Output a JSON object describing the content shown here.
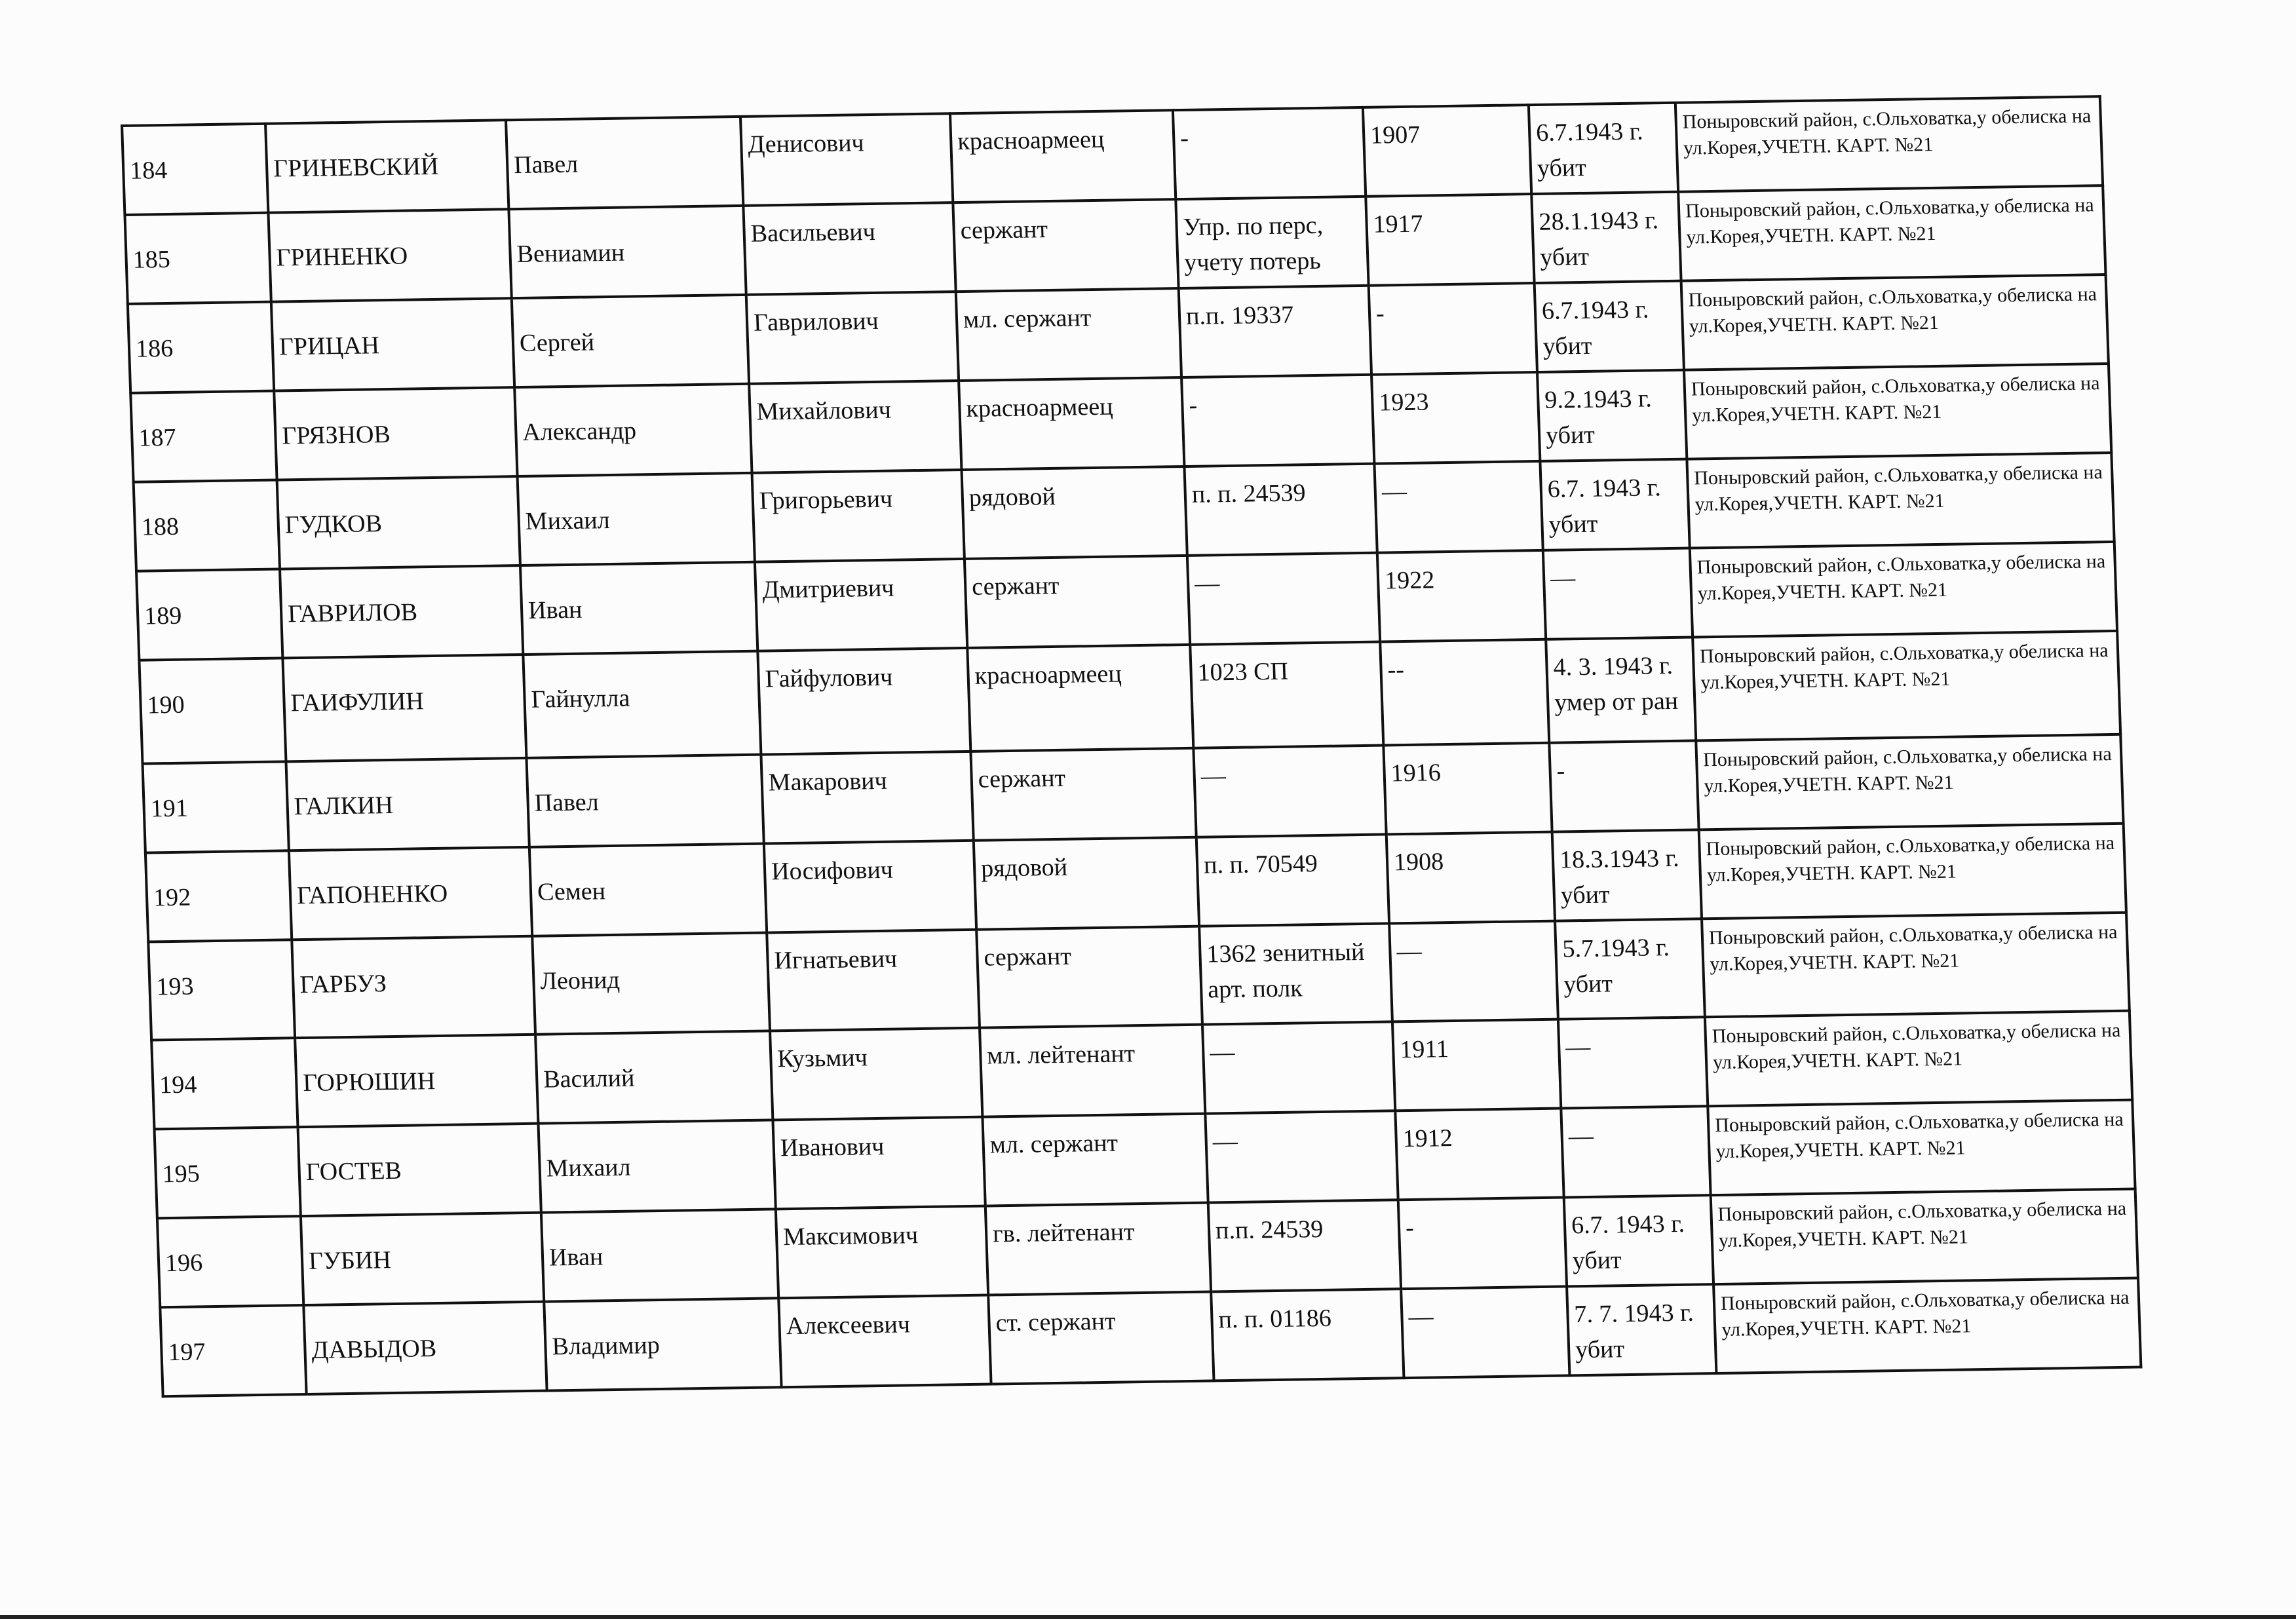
{
  "rows": [
    {
      "num": "184",
      "last": "ГРИНЕВСКИЙ",
      "first": "Павел",
      "patronymic": "Денисович",
      "rank": "красноармеец",
      "unit": "-",
      "birth": "1907",
      "death": "6.7.1943 г. убит",
      "burial": "Поныровский район, с.Ольховатка,у обелиска на ул.Корея,УЧЕТН. КАРТ. №21"
    },
    {
      "num": "185",
      "last": "ГРИНЕНКО",
      "first": "Вениамин",
      "patronymic": "Васильевич",
      "rank": "сержант",
      "unit": "Упр. по перс, учету потерь",
      "birth": "1917",
      "death": "28.1.1943 г. убит",
      "burial": "Поныровский район, с.Ольховатка,у обелиска на ул.Корея,УЧЕТН. КАРТ. №21"
    },
    {
      "num": "186",
      "last": "ГРИЦАН",
      "first": "Сергей",
      "patronymic": "Гаврилович",
      "rank": "мл. сержант",
      "unit": "п.п. 19337",
      "birth": "-",
      "death": "6.7.1943 г. убит",
      "burial": "Поныровский район, с.Ольховатка,у обелиска на ул.Корея,УЧЕТН. КАРТ. №21"
    },
    {
      "num": "187",
      "last": "ГРЯЗНОВ",
      "first": "Александр",
      "patronymic": "Михайлович",
      "rank": "красноармеец",
      "unit": "-",
      "birth": "1923",
      "death": "9.2.1943 г. убит",
      "burial": "Поныровский район, с.Ольховатка,у обелиска на ул.Корея,УЧЕТН. КАРТ. №21"
    },
    {
      "num": "188",
      "last": "ГУДКОВ",
      "first": "Михаил",
      "patronymic": "Григорьевич",
      "rank": "рядовой",
      "unit": "п. п. 24539",
      "birth": "—",
      "death": "6.7. 1943 г. убит",
      "burial": "Поныровский район, с.Ольховатка,у обелиска на ул.Корея,УЧЕТН. КАРТ. №21"
    },
    {
      "num": "189",
      "last": "ГАВРИЛОВ",
      "first": "Иван",
      "patronymic": "Дмитриевич",
      "rank": "сержант",
      "unit": "—",
      "birth": "1922",
      "death": "—",
      "burial": "Поныровский район, с.Ольховатка,у обелиска на ул.Корея,УЧЕТН. КАРТ. №21"
    },
    {
      "num": "190",
      "last": "ГАИФУЛИН",
      "first": "Гайнулла",
      "patronymic": "Гайфулович",
      "rank": "красноармеец",
      "unit": "1023 СП",
      "birth": "--",
      "death": "4. 3. 1943 г. умер от ран",
      "burial": "Поныровский район, с.Ольховатка,у обелиска на ул.Корея,УЧЕТН. КАРТ. №21"
    },
    {
      "num": "191",
      "last": "ГАЛКИН",
      "first": "Павел",
      "patronymic": "Макарович",
      "rank": "сержант",
      "unit": "—",
      "birth": "1916",
      "death": "-",
      "burial": "Поныровский район, с.Ольховатка,у обелиска на ул.Корея,УЧЕТН. КАРТ. №21"
    },
    {
      "num": "192",
      "last": "ГАПОНЕНКО",
      "first": "Семен",
      "patronymic": "Иосифович",
      "rank": "рядовой",
      "unit": "п. п. 70549",
      "birth": "1908",
      "death": "18.3.1943 г. убит",
      "burial": "Поныровский район, с.Ольховатка,у обелиска на ул.Корея,УЧЕТН. КАРТ. №21"
    },
    {
      "num": "193",
      "last": "ГАРБУЗ",
      "first": "Леонид",
      "patronymic": "Игнатьевич",
      "rank": "сержант",
      "unit": "1362 зенитный арт. полк",
      "birth": "—",
      "death": "5.7.1943 г. убит",
      "burial": "Поныровский район, с.Ольховатка,у обелиска на ул.Корея,УЧЕТН. КАРТ. №21"
    },
    {
      "num": "194",
      "last": "ГОРЮШИН",
      "first": "Василий",
      "patronymic": "Кузьмич",
      "rank": "мл. лейтенант",
      "unit": "—",
      "birth": "1911",
      "death": "—",
      "burial": "Поныровский район, с.Ольховатка,у обелиска на ул.Корея,УЧЕТН. КАРТ. №21"
    },
    {
      "num": "195",
      "last": "ГОСТЕВ",
      "first": "Михаил",
      "patronymic": "Иванович",
      "rank": "мл. сержант",
      "unit": "—",
      "birth": "1912",
      "death": "—",
      "burial": "Поныровский район, с.Ольховатка,у обелиска на ул.Корея,УЧЕТН. КАРТ. №21"
    },
    {
      "num": "196",
      "last": "ГУБИН",
      "first": "Иван",
      "patronymic": "Максимович",
      "rank": "гв. лейтенант",
      "unit": "п.п. 24539",
      "birth": "-",
      "death": "6.7. 1943 г. убит",
      "burial": "Поныровский район, с.Ольховатка,у обелиска на ул.Корея,УЧЕТН. КАРТ. №21"
    },
    {
      "num": "197",
      "last": "ДАВЫДОВ",
      "first": "Владимир",
      "patronymic": "Алексеевич",
      "rank": "ст. сержант",
      "unit": "п. п. 01186",
      "birth": "—",
      "death": "7. 7. 1943 г. убит",
      "burial": "Поныровский район, с.Ольховатка,у обелиска на ул.Корея,УЧЕТН. КАРТ. №21"
    }
  ]
}
